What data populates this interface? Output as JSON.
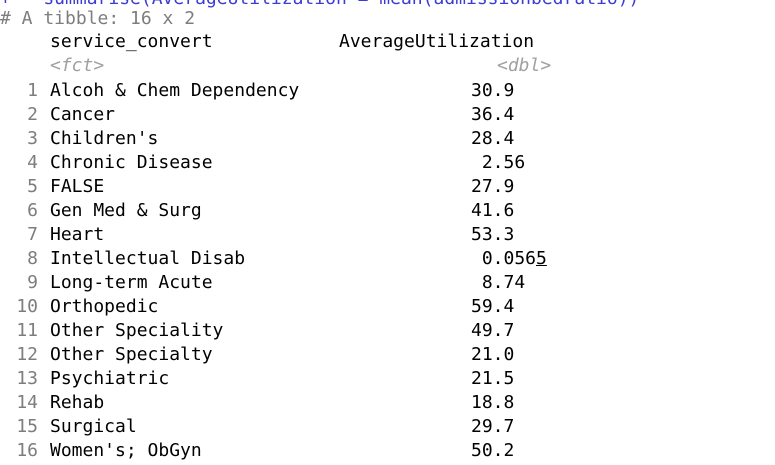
{
  "console": {
    "cut_command": "+   summarise(AverageUtilization = mean(admissionbedratio))",
    "tibble_header": "# A tibble: 16 x 2",
    "columns": [
      {
        "name": "service_convert",
        "type": "<fct>"
      },
      {
        "name": "AverageUtilization",
        "type": "<dbl>"
      }
    ],
    "rows": [
      {
        "n": "1",
        "service": "Alcoh & Chem Dependency",
        "value": "30.9"
      },
      {
        "n": "2",
        "service": "Cancer",
        "value": "36.4"
      },
      {
        "n": "3",
        "service": "Children's",
        "value": "28.4"
      },
      {
        "n": "4",
        "service": "Chronic Disease",
        "value": " 2.56"
      },
      {
        "n": "5",
        "service": "FALSE",
        "value": "27.9"
      },
      {
        "n": "6",
        "service": "Gen Med & Surg",
        "value": "41.6"
      },
      {
        "n": "7",
        "service": "Heart",
        "value": "53.3"
      },
      {
        "n": "8",
        "service": "Intellectual Disab",
        "value": " 0.056",
        "value_underlined_digit": "5"
      },
      {
        "n": "9",
        "service": "Long-term Acute",
        "value": " 8.74"
      },
      {
        "n": "10",
        "service": "Orthopedic",
        "value": "59.4"
      },
      {
        "n": "11",
        "service": "Other Speciality",
        "value": "49.7"
      },
      {
        "n": "12",
        "service": "Other Specialty",
        "value": "21.0"
      },
      {
        "n": "13",
        "service": "Psychiatric",
        "value": "21.5"
      },
      {
        "n": "14",
        "service": "Rehab",
        "value": "18.8"
      },
      {
        "n": "15",
        "service": "Surgical",
        "value": "29.7"
      },
      {
        "n": "16",
        "service": "Women's; ObGyn",
        "value": "50.2"
      }
    ]
  }
}
